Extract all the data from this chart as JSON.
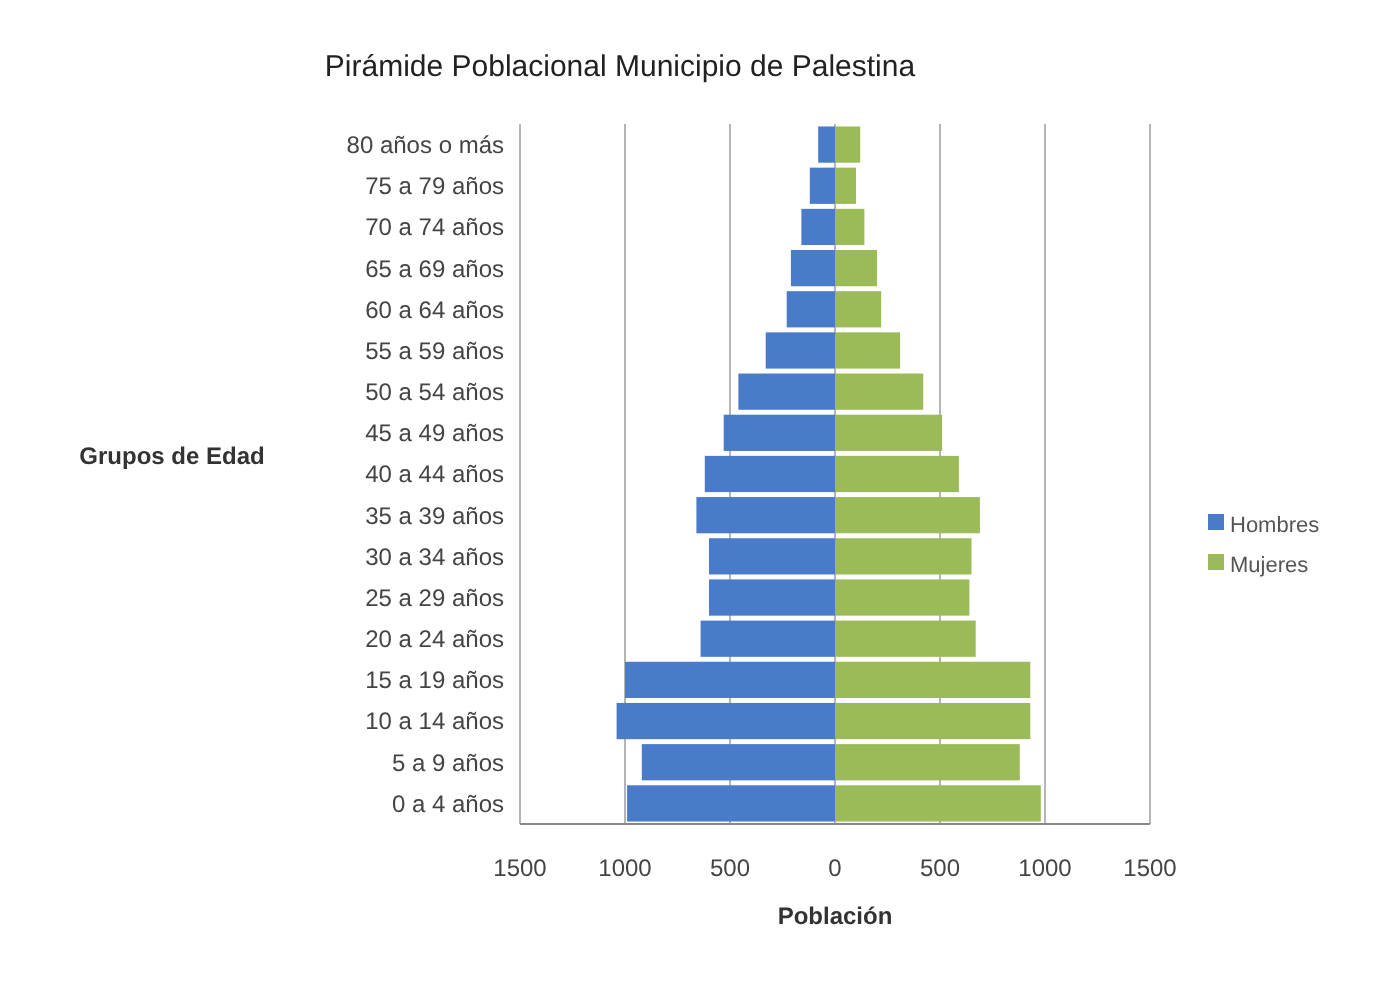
{
  "chart_data": {
    "type": "bar",
    "orientation": "horizontal",
    "stacked": true,
    "title": "Pirámide Poblacional Municipio de Palestina",
    "xlabel": "Población",
    "ylabel": "Grupos de Edad",
    "categories": [
      "80 años o más",
      "75 a 79 años",
      "70 a 74 años",
      "65 a 69 años",
      "60 a 64 años",
      "55 a 59 años",
      "50 a 54 años",
      "45 a 49 años",
      "40 a 44 años",
      "35 a 39 años",
      "30 a 34 años",
      "25 a 29 años",
      "20 a 24 años",
      "15 a 19 años",
      "10 a 14 años",
      "5 a 9 años",
      "0 a 4 años"
    ],
    "series": [
      {
        "name": "Hombres",
        "color": "#4a7bc8",
        "values": [
          -80,
          -120,
          -160,
          -210,
          -230,
          -330,
          -460,
          -530,
          -620,
          -660,
          -600,
          -600,
          -640,
          -1000,
          -1040,
          -920,
          -990
        ]
      },
      {
        "name": "Mujeres",
        "color": "#9bbb59",
        "values": [
          120,
          100,
          140,
          200,
          220,
          310,
          420,
          510,
          590,
          690,
          650,
          640,
          670,
          930,
          930,
          880,
          980
        ]
      }
    ],
    "xlim": [
      -1500,
      1500
    ],
    "xticks": [
      {
        "value": -1500,
        "label": "1500"
      },
      {
        "value": -1000,
        "label": "1000"
      },
      {
        "value": -500,
        "label": "500"
      },
      0,
      500,
      1000,
      1500
    ],
    "grid": "x",
    "legend": "right"
  }
}
